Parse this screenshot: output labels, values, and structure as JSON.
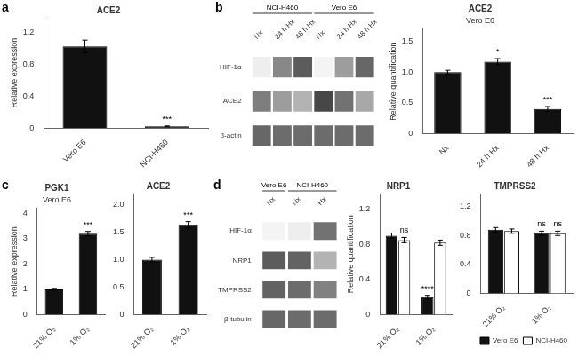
{
  "chart_data": [
    {
      "panel": "a",
      "type": "bar",
      "title": "ACE2",
      "categories": [
        "Vero E6",
        "NCI-H460"
      ],
      "values": [
        1.02,
        0.02
      ],
      "errors": [
        0.08,
        0.005
      ],
      "annotations": [
        null,
        "***"
      ],
      "color": "#111111",
      "ylabel": "Relative expression",
      "ylim": [
        0,
        1.38
      ],
      "yticks": [
        0,
        0.4,
        0.8,
        1.2
      ],
      "grid": false
    },
    {
      "panel": "b",
      "type": "heatmap",
      "categories": [
        "Nx",
        "24 h Hx",
        "48 h Hx",
        "Nx",
        "24 h Hx",
        "48 h Hx"
      ],
      "column_groups": [
        "NCI-H460",
        "NCI-H460",
        "NCI-H460",
        "Vero E6",
        "Vero E6",
        "Vero E6"
      ],
      "rows": [
        "HIF-1α",
        "ACE2",
        "β-actin"
      ],
      "cells": [
        [
          0.08,
          0.55,
          0.75,
          0.05,
          0.45,
          0.7
        ],
        [
          0.6,
          0.45,
          0.35,
          0.85,
          0.65,
          0.4
        ],
        [
          0.7,
          0.68,
          0.68,
          0.68,
          0.68,
          0.68
        ]
      ]
    },
    {
      "type": "bar",
      "title": "ACE2",
      "subtitle": "Vero E6",
      "categories": [
        "Nx",
        "24 h Hx",
        "48 h Hx"
      ],
      "values": [
        1.0,
        1.17,
        0.4
      ],
      "errors": [
        0.03,
        0.05,
        0.04
      ],
      "annotations": [
        null,
        "*",
        "***"
      ],
      "color": "#111111",
      "ylabel": "Relative quantification",
      "ylim": [
        0,
        1.7
      ],
      "yticks": [
        0,
        0.5,
        {
          "value": 1.0,
          "label": "1.0"
        },
        1.5
      ],
      "grid": false
    },
    {
      "panel": "c",
      "type": "bar",
      "title": "PGK1",
      "subtitle": "Vero E6",
      "categories": [
        "21% O₂",
        "1% O₂"
      ],
      "values": [
        1.0,
        3.2
      ],
      "errors": [
        0.04,
        0.09
      ],
      "annotations": [
        null,
        "***"
      ],
      "color": "#111111",
      "ylabel": "Relative expression",
      "ylim": [
        0,
        4.2
      ],
      "yticks": [
        0,
        1,
        2,
        3,
        4
      ],
      "grid": false
    },
    {
      "type": "bar",
      "title": "ACE2",
      "categories": [
        "21% O₂",
        "1% O₂"
      ],
      "values": [
        1.0,
        1.63
      ],
      "errors": [
        0.04,
        0.06
      ],
      "annotations": [
        null,
        "***"
      ],
      "color": "#111111",
      "ylim": [
        0,
        2.2
      ],
      "yticks": [
        0,
        0.5,
        {
          "value": 1.0,
          "label": "1.0"
        },
        1.5,
        {
          "value": 2.0,
          "label": "2.0"
        }
      ],
      "grid": false
    },
    {
      "panel": "d",
      "type": "heatmap",
      "categories": [
        "Nx",
        "Nx",
        "Hx"
      ],
      "column_groups": [
        "Vero E6",
        "NCI-H460",
        "NCI-H460"
      ],
      "rows": [
        "HIF-1α",
        "NRP1",
        "TMPRSS2",
        "β-tubulin"
      ],
      "cells": [
        [
          0.05,
          0.08,
          0.65
        ],
        [
          0.75,
          0.72,
          0.35
        ],
        [
          0.72,
          0.68,
          0.58
        ],
        [
          0.7,
          0.68,
          0.68
        ]
      ]
    },
    {
      "type": "bar",
      "title": "NRP1",
      "categories": [
        "21% O₂",
        "1% O₂"
      ],
      "series": [
        {
          "name": "Vero E6",
          "color": "#111111",
          "values": [
            0.9,
            0.2
          ],
          "errors": [
            0.03,
            0.02
          ],
          "annotations": [
            null,
            "****"
          ]
        },
        {
          "name": "NCI-H460",
          "color": "#ffffff",
          "values": [
            0.85,
            0.82
          ],
          "errors": [
            0.03,
            0.03
          ],
          "annotations": [
            "ns",
            null
          ]
        }
      ],
      "ylabel": "Relative quantification",
      "ylim": [
        0,
        1.38
      ],
      "yticks": [
        0,
        0.4,
        0.8,
        1.2
      ],
      "grid": false
    },
    {
      "type": "bar",
      "title": "TMPRSS2",
      "categories": [
        "21% O₂",
        "1% O₂"
      ],
      "series": [
        {
          "name": "Vero E6",
          "color": "#111111",
          "values": [
            0.88,
            0.83
          ],
          "errors": [
            0.03,
            0.03
          ],
          "annotations": [
            null,
            "ns"
          ]
        },
        {
          "name": "NCI-H460",
          "color": "#ffffff",
          "values": [
            0.86,
            0.83
          ],
          "errors": [
            0.03,
            0.03
          ],
          "annotations": [
            null,
            "ns"
          ]
        }
      ],
      "ylim": [
        0,
        1.38
      ],
      "yticks": [
        0,
        0.4,
        0.8,
        1.2
      ],
      "grid": false,
      "legend": "lower right"
    }
  ]
}
